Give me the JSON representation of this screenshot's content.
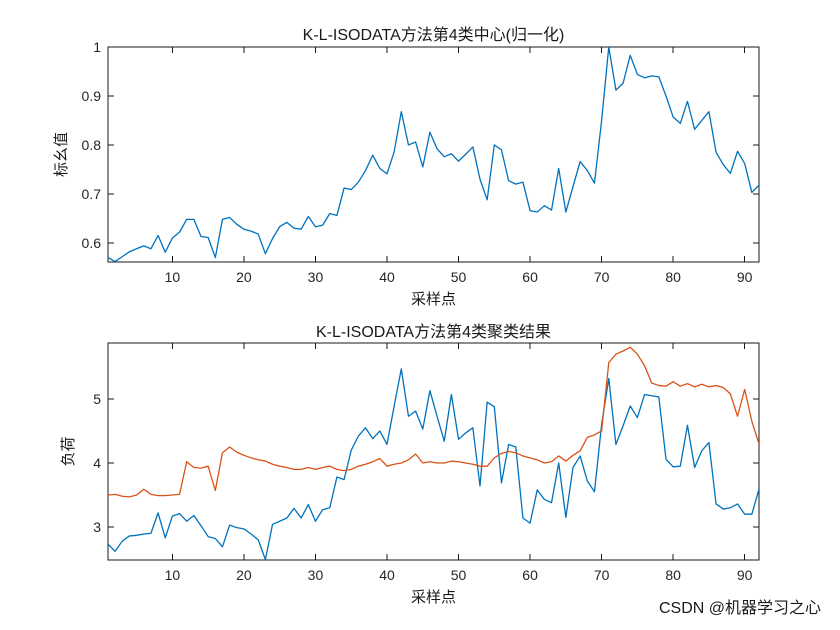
{
  "figure": {
    "watermark_text": "CSDN @机器学习之心",
    "watermark_color": "#c9c9c9",
    "background": "#ffffff",
    "axis_color": "#1a1a1a",
    "text_color": "#1a1a1a"
  },
  "chart_data": [
    {
      "type": "line",
      "title": "K-L-ISODATA方法第4类中心(归一化)",
      "xlabel": "采样点",
      "ylabel": "标幺值",
      "xlim": [
        1,
        92
      ],
      "ylim": [
        0.561,
        1.0
      ],
      "xticks": [
        10,
        20,
        30,
        40,
        50,
        60,
        70,
        80,
        90
      ],
      "yticks": [
        0.6,
        0.7,
        0.8,
        0.9,
        1
      ],
      "ytick_labels": [
        "0.6",
        "0.7",
        "0.8",
        "0.9",
        "1"
      ],
      "grid": false,
      "legend": null,
      "x_start": 1,
      "series": [
        {
          "name": "line-blue",
          "color": "#0072BD",
          "values": [
            0.57,
            0.562,
            0.572,
            0.582,
            0.588,
            0.594,
            0.588,
            0.615,
            0.581,
            0.61,
            0.622,
            0.648,
            0.648,
            0.613,
            0.611,
            0.57,
            0.648,
            0.652,
            0.638,
            0.628,
            0.624,
            0.618,
            0.578,
            0.609,
            0.633,
            0.642,
            0.63,
            0.628,
            0.654,
            0.633,
            0.636,
            0.66,
            0.656,
            0.712,
            0.709,
            0.724,
            0.748,
            0.779,
            0.752,
            0.741,
            0.786,
            0.868,
            0.8,
            0.806,
            0.755,
            0.826,
            0.792,
            0.776,
            0.782,
            0.767,
            0.781,
            0.796,
            0.73,
            0.688,
            0.8,
            0.79,
            0.727,
            0.72,
            0.724,
            0.666,
            0.663,
            0.676,
            0.667,
            0.752,
            0.663,
            0.715,
            0.766,
            0.748,
            0.722,
            0.85,
            1.0,
            0.912,
            0.926,
            0.983,
            0.944,
            0.937,
            0.941,
            0.939,
            0.9,
            0.857,
            0.844,
            0.889,
            0.832,
            0.85,
            0.868,
            0.785,
            0.76,
            0.742,
            0.787,
            0.762,
            0.703,
            0.718
          ]
        }
      ]
    },
    {
      "type": "line",
      "title": "K-L-ISODATA方法第4类聚类结果",
      "xlabel": "采样点",
      "ylabel": "负荷",
      "xlim": [
        1,
        92
      ],
      "ylim": [
        2.484,
        5.875
      ],
      "xticks": [
        10,
        20,
        30,
        40,
        50,
        60,
        70,
        80,
        90
      ],
      "yticks": [
        3,
        4,
        5
      ],
      "ytick_labels": [
        "3",
        "4",
        "5"
      ],
      "grid": false,
      "legend": null,
      "x_start": 1,
      "series": [
        {
          "name": "line-blue",
          "color": "#0072BD",
          "values": [
            2.73,
            2.62,
            2.78,
            2.86,
            2.87,
            2.89,
            2.9,
            3.22,
            2.83,
            3.17,
            3.21,
            3.09,
            3.18,
            3.02,
            2.85,
            2.82,
            2.69,
            3.03,
            2.99,
            2.97,
            2.89,
            2.8,
            2.49,
            3.04,
            3.09,
            3.14,
            3.29,
            3.14,
            3.35,
            3.09,
            3.27,
            3.3,
            3.78,
            3.74,
            4.2,
            4.42,
            4.55,
            4.38,
            4.5,
            4.29,
            4.89,
            5.47,
            4.73,
            4.81,
            4.53,
            5.13,
            4.73,
            4.34,
            5.07,
            4.37,
            4.47,
            4.55,
            3.64,
            4.95,
            4.88,
            3.69,
            4.29,
            4.25,
            3.14,
            3.06,
            3.58,
            3.43,
            3.38,
            4.0,
            3.15,
            3.93,
            4.11,
            3.72,
            3.55,
            4.6,
            5.32,
            4.29,
            4.58,
            4.89,
            4.71,
            5.07,
            5.05,
            5.03,
            4.06,
            3.94,
            3.95,
            4.59,
            3.93,
            4.19,
            4.32,
            3.36,
            3.28,
            3.3,
            3.36,
            3.2,
            3.2,
            3.59
          ]
        },
        {
          "name": "line-orange",
          "color": "#D95319",
          "values": [
            3.5,
            3.51,
            3.48,
            3.47,
            3.5,
            3.59,
            3.51,
            3.49,
            3.49,
            3.5,
            3.51,
            4.02,
            3.93,
            3.92,
            3.95,
            3.57,
            4.16,
            4.25,
            4.17,
            4.12,
            4.08,
            4.05,
            4.03,
            3.98,
            3.95,
            3.93,
            3.9,
            3.9,
            3.93,
            3.9,
            3.93,
            3.95,
            3.9,
            3.88,
            3.9,
            3.95,
            3.98,
            4.02,
            4.07,
            3.95,
            3.98,
            4.0,
            4.05,
            4.14,
            4.0,
            4.02,
            4.0,
            4.0,
            4.03,
            4.02,
            4.0,
            3.98,
            3.95,
            3.95,
            4.08,
            4.15,
            4.18,
            4.16,
            4.11,
            4.08,
            4.05,
            4.0,
            4.02,
            4.11,
            4.03,
            4.12,
            4.19,
            4.4,
            4.44,
            4.5,
            5.57,
            5.7,
            5.75,
            5.81,
            5.7,
            5.52,
            5.25,
            5.21,
            5.2,
            5.27,
            5.2,
            5.24,
            5.19,
            5.23,
            5.19,
            5.21,
            5.18,
            5.08,
            4.73,
            5.15,
            4.65,
            4.3
          ]
        }
      ]
    }
  ]
}
